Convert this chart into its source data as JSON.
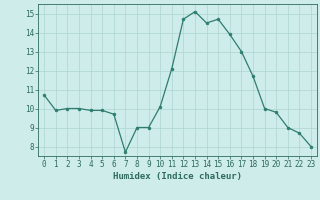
{
  "x": [
    0,
    1,
    2,
    3,
    4,
    5,
    6,
    7,
    8,
    9,
    10,
    11,
    12,
    13,
    14,
    15,
    16,
    17,
    18,
    19,
    20,
    21,
    22,
    23
  ],
  "y": [
    10.7,
    9.9,
    10.0,
    10.0,
    9.9,
    9.9,
    9.7,
    7.7,
    9.0,
    9.0,
    10.1,
    12.1,
    14.7,
    15.1,
    14.5,
    14.7,
    13.9,
    13.0,
    11.7,
    10.0,
    9.8,
    9.0,
    8.7,
    8.0
  ],
  "line_color": "#2e7d6e",
  "marker": "o",
  "marker_size": 2,
  "bg_color": "#ceecea",
  "grid_color": "#aed4d0",
  "xlabel": "Humidex (Indice chaleur)",
  "ylim": [
    7.5,
    15.5
  ],
  "xlim": [
    -0.5,
    23.5
  ],
  "yticks": [
    8,
    9,
    10,
    11,
    12,
    13,
    14,
    15
  ],
  "xticks": [
    0,
    1,
    2,
    3,
    4,
    5,
    6,
    7,
    8,
    9,
    10,
    11,
    12,
    13,
    14,
    15,
    16,
    17,
    18,
    19,
    20,
    21,
    22,
    23
  ],
  "tick_color": "#2e6b5e",
  "tick_fontsize": 5.5,
  "xlabel_fontsize": 6.5
}
